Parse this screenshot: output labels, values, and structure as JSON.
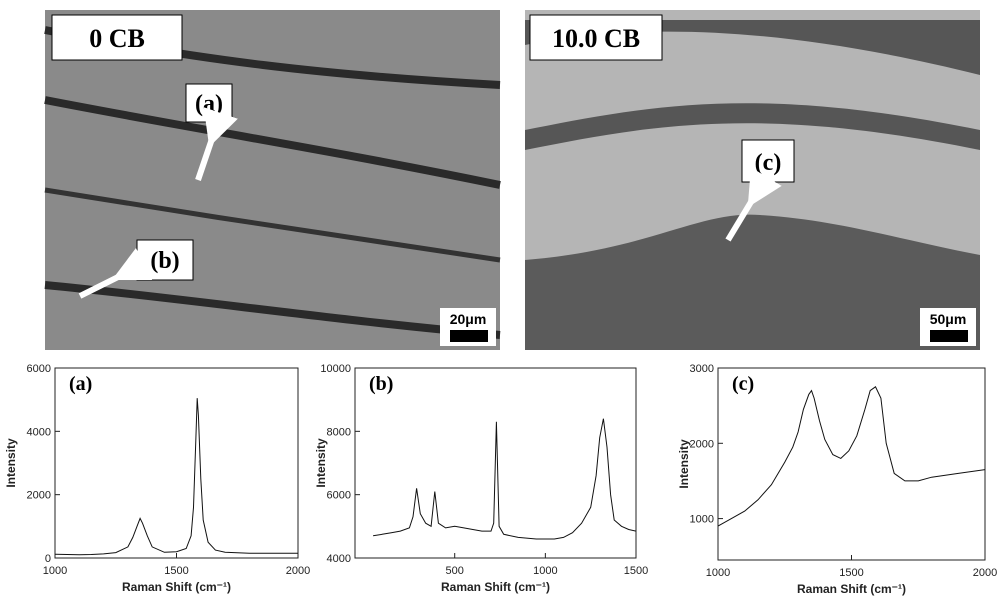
{
  "micrographs": [
    {
      "label": "0 CB",
      "markers": [
        "(a)",
        "(b)"
      ],
      "scale": "20μm"
    },
    {
      "label": "10.0 CB",
      "markers": [
        "(c)"
      ],
      "scale": "50μm"
    }
  ],
  "chart_data": [
    {
      "type": "line",
      "annotation": "(a)",
      "x_label": "Raman Shift (cm⁻¹)",
      "y_label": "Intensity",
      "color": "#111111",
      "xlim": [
        1000,
        2000
      ],
      "xticks": [
        1000,
        1500,
        2000
      ],
      "ylim": [
        0,
        6000
      ],
      "yticks": [
        0,
        2000,
        4000,
        6000
      ],
      "x": [
        1000,
        1050,
        1100,
        1150,
        1200,
        1250,
        1300,
        1320,
        1340,
        1350,
        1360,
        1380,
        1400,
        1450,
        1500,
        1540,
        1560,
        1570,
        1580,
        1585,
        1590,
        1600,
        1610,
        1630,
        1660,
        1700,
        1800,
        1900,
        2000
      ],
      "values": [
        120,
        110,
        100,
        110,
        130,
        170,
        350,
        650,
        1050,
        1250,
        1100,
        700,
        350,
        180,
        200,
        300,
        700,
        1600,
        3800,
        5050,
        4500,
        2500,
        1200,
        500,
        250,
        180,
        150,
        150,
        150
      ]
    },
    {
      "type": "line",
      "annotation": "(b)",
      "x_label": "Raman Shift (cm⁻¹)",
      "y_label": "Intensity",
      "color": "#111111",
      "xlim": [
        -50,
        1500
      ],
      "xticks": [
        500,
        1000,
        1500
      ],
      "ylim": [
        4000,
        10000
      ],
      "yticks": [
        4000,
        6000,
        8000,
        10000
      ],
      "x": [
        50,
        100,
        150,
        200,
        250,
        270,
        290,
        310,
        340,
        370,
        390,
        410,
        450,
        500,
        550,
        600,
        650,
        700,
        715,
        730,
        745,
        770,
        850,
        950,
        1050,
        1100,
        1150,
        1200,
        1250,
        1280,
        1300,
        1320,
        1340,
        1360,
        1380,
        1420,
        1460,
        1500
      ],
      "values": [
        4700,
        4750,
        4800,
        4850,
        4950,
        5300,
        6200,
        5400,
        5100,
        5000,
        6100,
        5100,
        4950,
        5000,
        4950,
        4900,
        4850,
        4850,
        5100,
        8300,
        5000,
        4750,
        4650,
        4600,
        4600,
        4650,
        4800,
        5100,
        5600,
        6600,
        7800,
        8400,
        7500,
        6000,
        5200,
        5000,
        4900,
        4850
      ]
    },
    {
      "type": "line",
      "annotation": "(c)",
      "x_label": "Raman Shift (cm⁻¹)",
      "y_label": "Intensity",
      "color": "#111111",
      "xlim": [
        1000,
        2000
      ],
      "xticks": [
        1000,
        1500,
        2000
      ],
      "ylim": [
        450,
        3000
      ],
      "yticks": [
        1000,
        2000,
        3000
      ],
      "x": [
        1000,
        1050,
        1100,
        1150,
        1200,
        1250,
        1280,
        1300,
        1320,
        1340,
        1350,
        1360,
        1380,
        1400,
        1430,
        1460,
        1490,
        1520,
        1550,
        1570,
        1590,
        1610,
        1630,
        1660,
        1700,
        1750,
        1800,
        1900,
        2000
      ],
      "values": [
        900,
        1000,
        1100,
        1250,
        1450,
        1750,
        1950,
        2150,
        2450,
        2650,
        2700,
        2600,
        2300,
        2050,
        1850,
        1800,
        1900,
        2100,
        2450,
        2700,
        2750,
        2600,
        2000,
        1600,
        1500,
        1500,
        1550,
        1600,
        1650
      ]
    }
  ]
}
